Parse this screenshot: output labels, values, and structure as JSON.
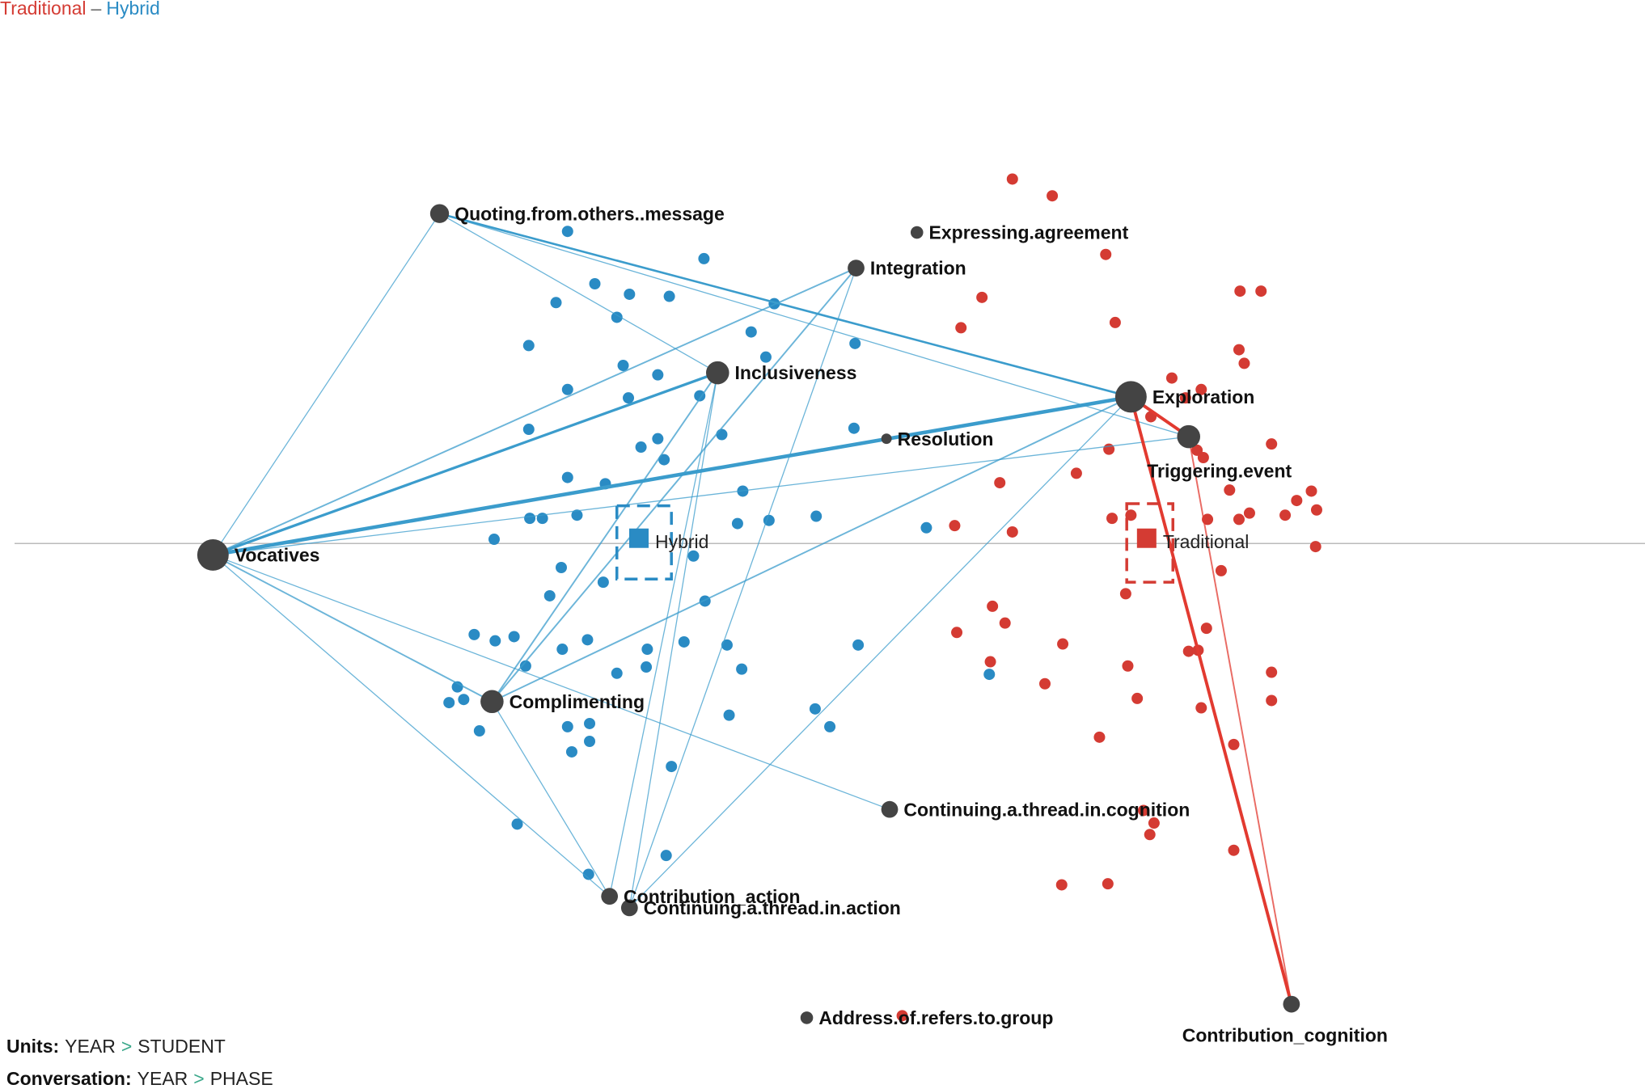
{
  "chart_data": {
    "type": "network",
    "xlim": [
      -784,
      784
    ],
    "ylim": [
      -521,
      519
    ],
    "legend_separator": "–",
    "groups": [
      {
        "name": "Traditional",
        "color": "#d43b33",
        "edge_color": "#e23a30",
        "points": {
          "x": [
            181,
            219,
            270,
            152,
            398,
            418,
            279,
            132,
            397,
            402,
            333,
            361,
            346,
            313,
            428,
            273,
            357,
            363,
            242,
            169,
            388,
            466,
            452,
            471,
            407,
            397,
            441,
            126,
            181,
            367,
            276,
            294,
            470,
            380,
            289,
            162,
            174,
            128,
            229,
            366,
            160,
            291,
            349,
            358,
            428,
            212,
            300,
            428,
            361,
            264,
            392,
            306,
            316,
            312,
            392,
            228,
            272,
            76
          ],
          "y": [
            348,
            332,
            276,
            235,
            241,
            241,
            211,
            206,
            185,
            172,
            158,
            147,
            139,
            121,
            95,
            90,
            89,
            82,
            67,
            58,
            51,
            50,
            41,
            32,
            29,
            23,
            27,
            17,
            11,
            23,
            24,
            27,
            -3,
            -26,
            -48,
            -60,
            -76,
            -85,
            -96,
            -81,
            -113,
            -117,
            -103,
            -102,
            -123,
            -134,
            -148,
            -150,
            -157,
            -185,
            -192,
            -255,
            -267,
            -278,
            -293,
            -326,
            -325,
            -451
          ]
        },
        "mean": {
          "x": 309,
          "y": 5
        },
        "ci": {
          "x": [
            290,
            334
          ],
          "y": [
            38,
            -37
          ]
        }
      },
      {
        "name": "Hybrid",
        "color": "#2a8bc4",
        "edge_color": "#3b9ccc",
        "points": {
          "x": [
            -243,
            -113,
            -217,
            -184,
            -146,
            -254,
            -196,
            -46,
            -68,
            -280,
            -54,
            31,
            -190,
            -157,
            -243,
            -185,
            -117,
            -280,
            -173,
            -157,
            -96,
            30,
            -151,
            -243,
            -207,
            -76,
            -279,
            -267,
            -234,
            -313,
            -81,
            -51,
            -6,
            -123,
            99,
            -209,
            -249,
            -260,
            -112,
            -332,
            -312,
            -294,
            -224,
            -248,
            -283,
            -167,
            -168,
            -132,
            -91,
            -77,
            -196,
            -348,
            -342,
            -356,
            34,
            159,
            -243,
            -222,
            -89,
            -7,
            7,
            -327,
            -239,
            -222,
            -144,
            -291,
            -149,
            -223
          ],
          "y": [
            298,
            272,
            248,
            238,
            236,
            230,
            216,
            229,
            202,
            189,
            178,
            191,
            170,
            161,
            147,
            139,
            141,
            109,
            92,
            100,
            104,
            110,
            80,
            63,
            57,
            50,
            24,
            24,
            27,
            4,
            19,
            22,
            26,
            -12,
            15,
            -37,
            -23,
            -50,
            -55,
            -87,
            -93,
            -89,
            -92,
            -101,
            -117,
            -101,
            -118,
            -94,
            -97,
            -120,
            -124,
            -137,
            -149,
            -152,
            -97,
            -125,
            -175,
            -172,
            -164,
            -158,
            -175,
            -179,
            -199,
            -189,
            -213,
            -268,
            -298,
            -316
          ]
        },
        "mean": {
          "x": -175,
          "y": 5
        },
        "ci": {
          "x": [
            -196,
            -144
          ],
          "y": [
            36,
            -34
          ]
        }
      }
    ],
    "nodes": [
      {
        "name": "Quoting.from.others..message",
        "x": -365,
        "y": 315,
        "size": 9
      },
      {
        "name": "Integration",
        "x": 32,
        "y": 263,
        "size": 8
      },
      {
        "name": "Expressing.agreement",
        "x": 90,
        "y": 297,
        "size": 6
      },
      {
        "name": "Inclusiveness",
        "x": -100,
        "y": 163,
        "size": 11
      },
      {
        "name": "Exploration",
        "x": 294,
        "y": 140,
        "size": 15
      },
      {
        "name": "Resolution",
        "x": 61,
        "y": 100,
        "size": 5
      },
      {
        "name": "Triggering.event",
        "x": 349,
        "y": 102,
        "size": 11
      },
      {
        "name": "Vocatives",
        "x": -581,
        "y": -11,
        "size": 15
      },
      {
        "name": "Complimenting",
        "x": -315,
        "y": -151,
        "size": 11
      },
      {
        "name": "Continuing.a.thread.in.cognition",
        "x": 64,
        "y": -254,
        "size": 8
      },
      {
        "name": "Contribution_action",
        "x": -203,
        "y": -337,
        "size": 8
      },
      {
        "name": "Continuing.a.thread.in.action",
        "x": -184,
        "y": -348,
        "size": 8
      },
      {
        "name": "Address.of.refers.to.group",
        "x": -15,
        "y": -453,
        "size": 6
      },
      {
        "name": "Contribution_cognition",
        "x": 447,
        "y": -440,
        "size": 8
      }
    ],
    "edges": [
      {
        "source": 7,
        "target": 0,
        "weight": 1,
        "group": 1
      },
      {
        "source": 7,
        "target": 3,
        "weight": 2.5,
        "group": 1
      },
      {
        "source": 7,
        "target": 4,
        "weight": 3.5,
        "group": 1
      },
      {
        "source": 7,
        "target": 1,
        "weight": 1.5,
        "group": 1
      },
      {
        "source": 7,
        "target": 6,
        "weight": 1,
        "group": 1
      },
      {
        "source": 7,
        "target": 8,
        "weight": 1.5,
        "group": 1
      },
      {
        "source": 7,
        "target": 10,
        "weight": 1,
        "group": 1
      },
      {
        "source": 7,
        "target": 9,
        "weight": 1,
        "group": 1
      },
      {
        "source": 0,
        "target": 3,
        "weight": 1,
        "group": 1
      },
      {
        "source": 0,
        "target": 4,
        "weight": 2,
        "group": 1
      },
      {
        "source": 0,
        "target": 6,
        "weight": 1,
        "group": 1
      },
      {
        "source": 1,
        "target": 8,
        "weight": 1.5,
        "group": 1
      },
      {
        "source": 1,
        "target": 11,
        "weight": 1,
        "group": 1
      },
      {
        "source": 3,
        "target": 8,
        "weight": 1.5,
        "group": 1
      },
      {
        "source": 3,
        "target": 10,
        "weight": 1,
        "group": 1
      },
      {
        "source": 3,
        "target": 11,
        "weight": 1,
        "group": 1
      },
      {
        "source": 4,
        "target": 8,
        "weight": 1.5,
        "group": 1
      },
      {
        "source": 4,
        "target": 11,
        "weight": 1,
        "group": 1
      },
      {
        "source": 8,
        "target": 10,
        "weight": 1,
        "group": 1
      },
      {
        "source": 4,
        "target": 6,
        "weight": 3,
        "group": 0
      },
      {
        "source": 4,
        "target": 13,
        "weight": 3,
        "group": 0
      },
      {
        "source": 6,
        "target": 13,
        "weight": 1.5,
        "group": 0
      }
    ],
    "footer": {
      "separator": ">",
      "rows": [
        {
          "label": "Units:",
          "parts": [
            "YEAR",
            "STUDENT"
          ]
        },
        {
          "label": "Conversation:",
          "parts": [
            "YEAR",
            "PHASE"
          ]
        }
      ]
    }
  }
}
